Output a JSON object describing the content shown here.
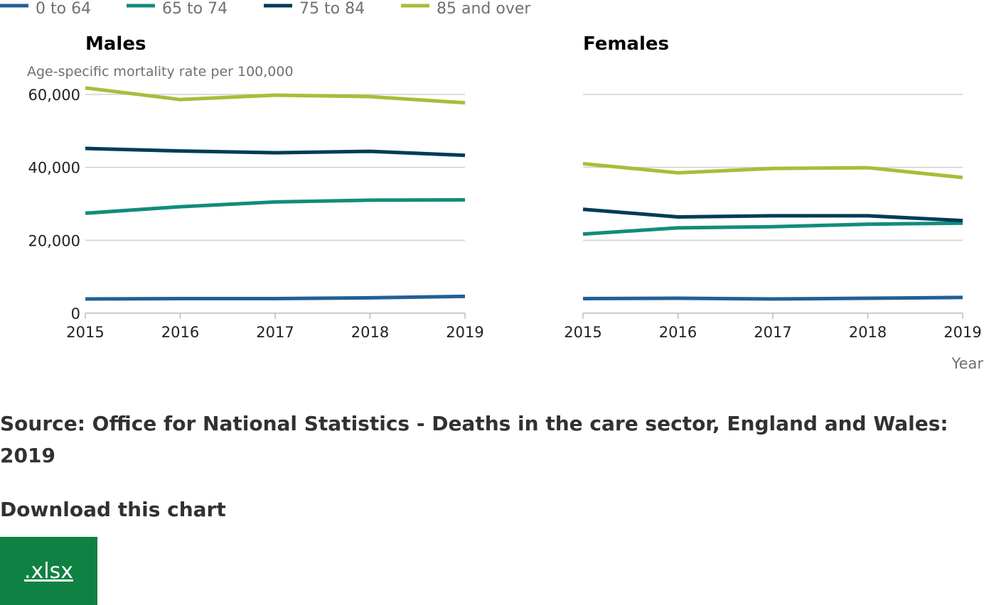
{
  "legend": {
    "items": [
      {
        "label": "0 to 64",
        "color": "#206095"
      },
      {
        "label": "65 to 74",
        "color": "#118c7b"
      },
      {
        "label": "75 to 84",
        "color": "#003c57"
      },
      {
        "label": "85 and over",
        "color": "#a8bd3a"
      }
    ]
  },
  "y_axis_label": "Age-specific mortality rate per 100,000",
  "x_axis_label": "Year",
  "source_text": "Source: Office for National Statistics - Deaths in the care sector, England and Wales: 2019",
  "download": {
    "heading": "Download this chart",
    "button_label": ".xlsx"
  },
  "chart_data": [
    {
      "type": "line",
      "title": "Males",
      "xlabel": "",
      "ylabel": "Age-specific mortality rate per 100,000",
      "x": [
        2015,
        2016,
        2017,
        2018,
        2019
      ],
      "ylim": [
        0,
        60000
      ],
      "yticks": [
        0,
        20000,
        40000,
        60000
      ],
      "ytick_labels": [
        "0",
        "20,000",
        "40,000",
        "60,000"
      ],
      "grid": true,
      "series": [
        {
          "name": "0 to 64",
          "color": "#206095",
          "values": [
            3900,
            4000,
            4000,
            4200,
            4600
          ]
        },
        {
          "name": "65 to 74",
          "color": "#118c7b",
          "values": [
            27400,
            29200,
            30500,
            31000,
            31100
          ]
        },
        {
          "name": "75 to 84",
          "color": "#003c57",
          "values": [
            45200,
            44500,
            44000,
            44400,
            43300
          ]
        },
        {
          "name": "85 and over",
          "color": "#a8bd3a",
          "values": [
            61800,
            58600,
            59800,
            59400,
            57700
          ]
        }
      ]
    },
    {
      "type": "line",
      "title": "Females",
      "xlabel": "Year",
      "ylabel": "",
      "x": [
        2015,
        2016,
        2017,
        2018,
        2019
      ],
      "ylim": [
        0,
        60000
      ],
      "yticks": [
        0,
        20000,
        40000,
        60000
      ],
      "grid": true,
      "series": [
        {
          "name": "0 to 64",
          "color": "#206095",
          "values": [
            4000,
            4100,
            3900,
            4100,
            4300
          ]
        },
        {
          "name": "65 to 74",
          "color": "#118c7b",
          "values": [
            21700,
            23400,
            23700,
            24400,
            24700
          ]
        },
        {
          "name": "75 to 84",
          "color": "#003c57",
          "values": [
            28500,
            26400,
            26700,
            26700,
            25400
          ]
        },
        {
          "name": "85 and over",
          "color": "#a8bd3a",
          "values": [
            41000,
            38500,
            39700,
            39900,
            37200
          ]
        }
      ]
    }
  ]
}
